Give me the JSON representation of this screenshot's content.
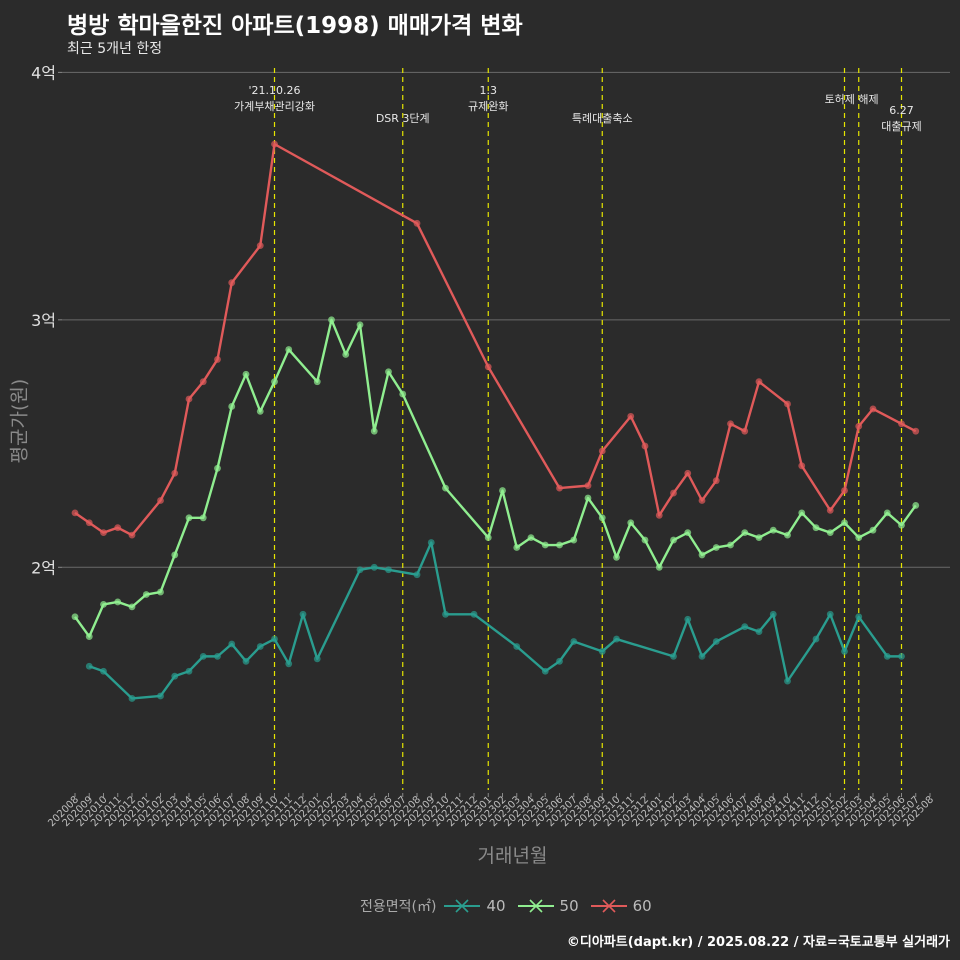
{
  "title": "병방 학마을한진 아파트(1998) 매매가격 변화",
  "subtitle": "최근 5개년 한정",
  "credit": "©디아파트(dapt.kr) / 2025.08.22 / 자료=국토교통부 실거래가",
  "chart_data": {
    "type": "line",
    "xlabel": "거래년월",
    "ylabel": "평균가(원)",
    "ylim": [
      1.1,
      4.05
    ],
    "y_ticks": [
      {
        "value": 2,
        "label": "2억"
      },
      {
        "value": 3,
        "label": "3억"
      },
      {
        "value": 4,
        "label": "4억"
      }
    ],
    "categories": [
      "202008",
      "202009",
      "202010",
      "202011",
      "202012",
      "202101",
      "202102",
      "202103",
      "202104",
      "202105",
      "202106",
      "202107",
      "202108",
      "202109",
      "202110",
      "202111",
      "202112",
      "202201",
      "202202",
      "202203",
      "202204",
      "202205",
      "202206",
      "202207",
      "202208",
      "202209",
      "202210",
      "202211",
      "202212",
      "202301",
      "202302",
      "202303",
      "202304",
      "202305",
      "202306",
      "202307",
      "202308",
      "202309",
      "202310",
      "202311",
      "202312",
      "202401",
      "202402",
      "202403",
      "202404",
      "202405",
      "202406",
      "202407",
      "202408",
      "202409",
      "202410",
      "202411",
      "202412",
      "202501",
      "202502",
      "202503",
      "202504",
      "202505",
      "202506",
      "202507",
      "202508"
    ],
    "legend_title": "전용면적(㎡)",
    "series": [
      {
        "name": "40",
        "color": "#2a9d8f",
        "points": [
          [
            "202009",
            1.6
          ],
          [
            "202010",
            1.58
          ],
          [
            "202012",
            1.47
          ],
          [
            "202102",
            1.48
          ],
          [
            "202103",
            1.56
          ],
          [
            "202104",
            1.58
          ],
          [
            "202105",
            1.64
          ],
          [
            "202106",
            1.64
          ],
          [
            "202107",
            1.69
          ],
          [
            "202108",
            1.62
          ],
          [
            "202109",
            1.68
          ],
          [
            "202110",
            1.71
          ],
          [
            "202111",
            1.61
          ],
          [
            "202112",
            1.81
          ],
          [
            "202201",
            1.63
          ],
          [
            "202204",
            1.99
          ],
          [
            "202205",
            2.0
          ],
          [
            "202206",
            1.99
          ],
          [
            "202208",
            1.97
          ],
          [
            "202209",
            2.1
          ],
          [
            "202210",
            1.81
          ],
          [
            "202212",
            1.81
          ],
          [
            "202303",
            1.68
          ],
          [
            "202305",
            1.58
          ],
          [
            "202306",
            1.62
          ],
          [
            "202307",
            1.7
          ],
          [
            "202309",
            1.66
          ],
          [
            "202310",
            1.71
          ],
          [
            "202402",
            1.64
          ],
          [
            "202403",
            1.79
          ],
          [
            "202404",
            1.64
          ],
          [
            "202405",
            1.7
          ],
          [
            "202407",
            1.76
          ],
          [
            "202408",
            1.74
          ],
          [
            "202409",
            1.81
          ],
          [
            "202410",
            1.54
          ],
          [
            "202412",
            1.71
          ],
          [
            "202501",
            1.81
          ],
          [
            "202502",
            1.66
          ],
          [
            "202503",
            1.8
          ],
          [
            "202505",
            1.64
          ],
          [
            "202506",
            1.64
          ]
        ]
      },
      {
        "name": "50",
        "color": "#90ee90",
        "points": [
          [
            "202008",
            1.8
          ],
          [
            "202009",
            1.72
          ],
          [
            "202010",
            1.85
          ],
          [
            "202011",
            1.86
          ],
          [
            "202012",
            1.84
          ],
          [
            "202101",
            1.89
          ],
          [
            "202102",
            1.9
          ],
          [
            "202103",
            2.05
          ],
          [
            "202104",
            2.2
          ],
          [
            "202105",
            2.2
          ],
          [
            "202106",
            2.4
          ],
          [
            "202107",
            2.65
          ],
          [
            "202108",
            2.78
          ],
          [
            "202109",
            2.63
          ],
          [
            "202110",
            2.75
          ],
          [
            "202111",
            2.88
          ],
          [
            "202201",
            2.75
          ],
          [
            "202202",
            3.0
          ],
          [
            "202203",
            2.86
          ],
          [
            "202204",
            2.98
          ],
          [
            "202205",
            2.55
          ],
          [
            "202206",
            2.79
          ],
          [
            "202207",
            2.7
          ],
          [
            "202210",
            2.32
          ],
          [
            "202301",
            2.12
          ],
          [
            "202302",
            2.31
          ],
          [
            "202303",
            2.08
          ],
          [
            "202304",
            2.12
          ],
          [
            "202305",
            2.09
          ],
          [
            "202306",
            2.09
          ],
          [
            "202307",
            2.11
          ],
          [
            "202308",
            2.28
          ],
          [
            "202309",
            2.2
          ],
          [
            "202310",
            2.04
          ],
          [
            "202311",
            2.18
          ],
          [
            "202312",
            2.11
          ],
          [
            "202401",
            2.0
          ],
          [
            "202402",
            2.11
          ],
          [
            "202403",
            2.14
          ],
          [
            "202404",
            2.05
          ],
          [
            "202405",
            2.08
          ],
          [
            "202406",
            2.09
          ],
          [
            "202407",
            2.14
          ],
          [
            "202408",
            2.12
          ],
          [
            "202409",
            2.15
          ],
          [
            "202410",
            2.13
          ],
          [
            "202411",
            2.22
          ],
          [
            "202412",
            2.16
          ],
          [
            "202501",
            2.14
          ],
          [
            "202502",
            2.18
          ],
          [
            "202503",
            2.12
          ],
          [
            "202504",
            2.15
          ],
          [
            "202505",
            2.22
          ],
          [
            "202506",
            2.17
          ],
          [
            "202507",
            2.25
          ]
        ]
      },
      {
        "name": "60",
        "color": "#e05a5a",
        "points": [
          [
            "202008",
            2.22
          ],
          [
            "202009",
            2.18
          ],
          [
            "202010",
            2.14
          ],
          [
            "202011",
            2.16
          ],
          [
            "202012",
            2.13
          ],
          [
            "202102",
            2.27
          ],
          [
            "202103",
            2.38
          ],
          [
            "202104",
            2.68
          ],
          [
            "202105",
            2.75
          ],
          [
            "202106",
            2.84
          ],
          [
            "202107",
            3.15
          ],
          [
            "202109",
            3.3
          ],
          [
            "202110",
            3.71
          ],
          [
            "202208",
            3.39
          ],
          [
            "202301",
            2.81
          ],
          [
            "202306",
            2.32
          ],
          [
            "202308",
            2.33
          ],
          [
            "202309",
            2.47
          ],
          [
            "202311",
            2.61
          ],
          [
            "202312",
            2.49
          ],
          [
            "202401",
            2.21
          ],
          [
            "202402",
            2.3
          ],
          [
            "202403",
            2.38
          ],
          [
            "202404",
            2.27
          ],
          [
            "202405",
            2.35
          ],
          [
            "202406",
            2.58
          ],
          [
            "202407",
            2.55
          ],
          [
            "202408",
            2.75
          ],
          [
            "202410",
            2.66
          ],
          [
            "202411",
            2.41
          ],
          [
            "202501",
            2.23
          ],
          [
            "202502",
            2.31
          ],
          [
            "202503",
            2.57
          ],
          [
            "202504",
            2.64
          ],
          [
            "202506",
            2.58
          ],
          [
            "202507",
            2.55
          ]
        ]
      }
    ],
    "annotations": [
      {
        "at": "202110",
        "lines": [
          "'21.10.26",
          "가계부채관리강화"
        ],
        "row": 0
      },
      {
        "at": "202207",
        "lines": [
          "DSR 3단계"
        ],
        "row": 1
      },
      {
        "at": "202301",
        "lines": [
          "1.3",
          "규제완화"
        ],
        "row": 0
      },
      {
        "at": "202309",
        "lines": [
          "특례대출축소"
        ],
        "row": 1
      },
      {
        "at": "202502",
        "lines": [
          "토허제 해제"
        ],
        "row": 0,
        "anchor_between": "202503"
      },
      {
        "at": "202506",
        "lines": [
          "6.27",
          "대출규제"
        ],
        "row": 1
      }
    ]
  }
}
